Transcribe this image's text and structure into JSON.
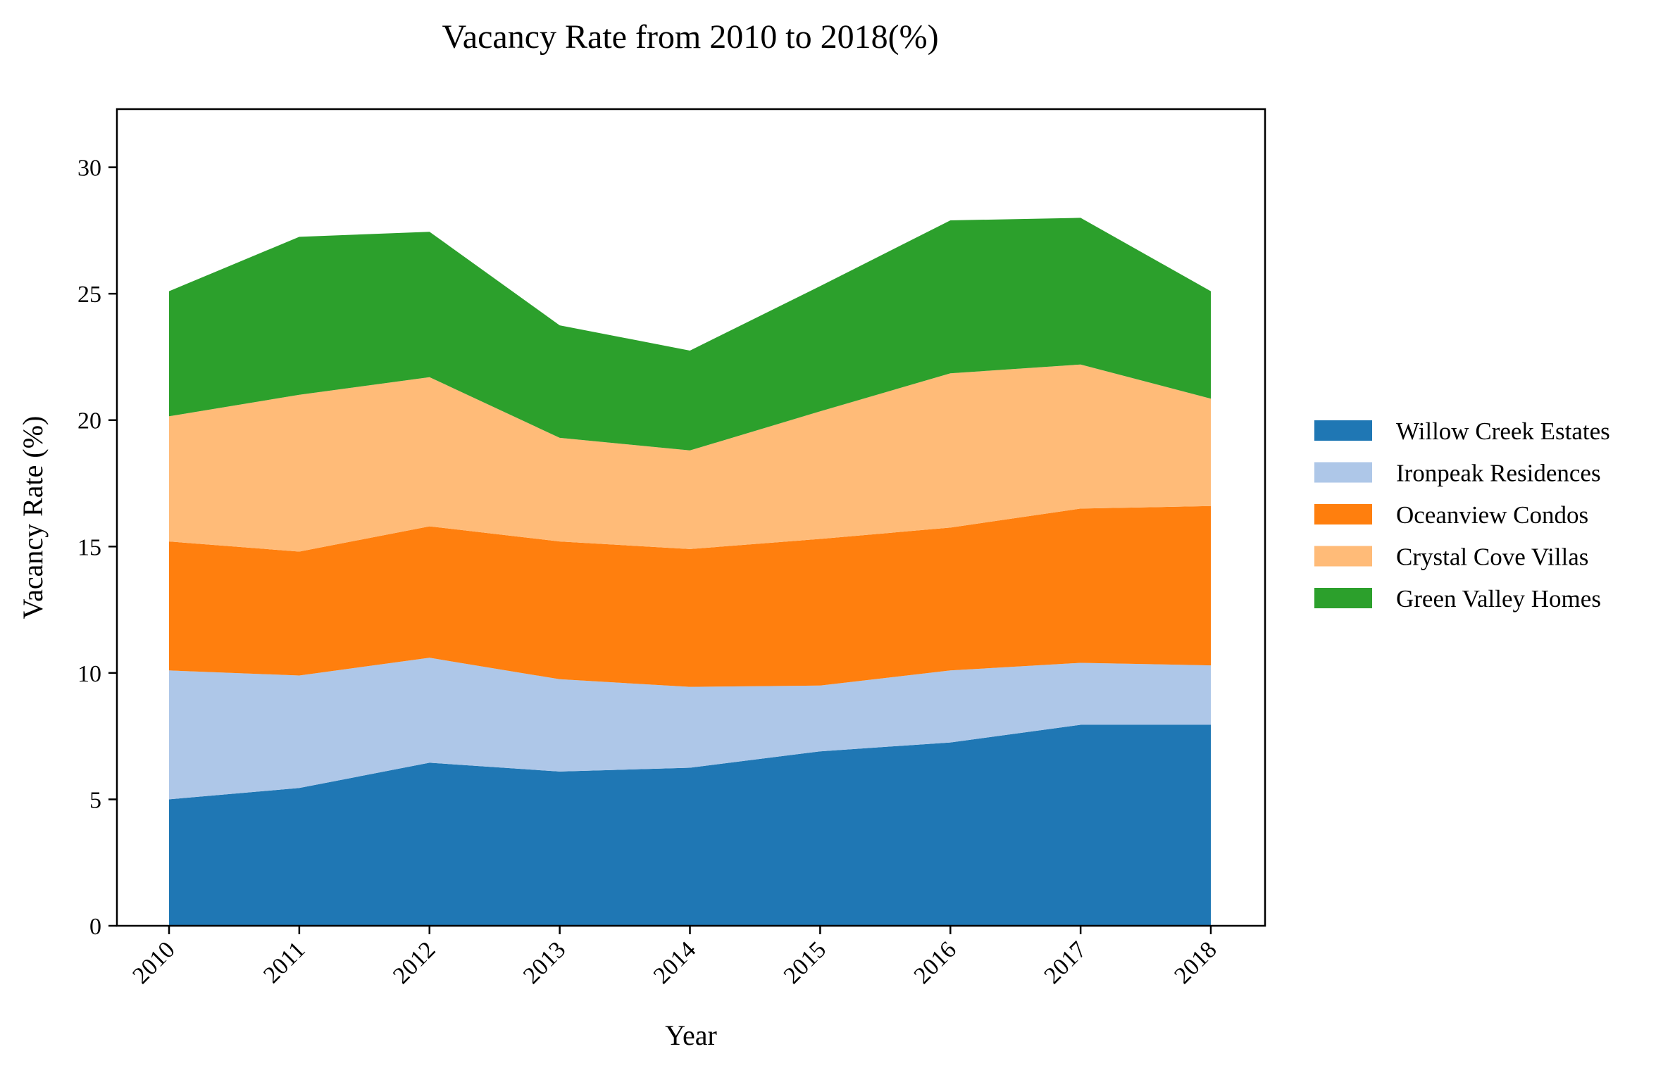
{
  "chart_data": {
    "type": "area",
    "stacked": true,
    "title": "Vacancy Rate from 2010 to 2018(%)",
    "xlabel": "Year",
    "ylabel": "Vacancy Rate (%)",
    "categories": [
      "2010",
      "2011",
      "2012",
      "2013",
      "2014",
      "2015",
      "2016",
      "2017",
      "2018"
    ],
    "ylim": [
      0,
      32.3
    ],
    "yticks": [
      0,
      5,
      10,
      15,
      20,
      25,
      30
    ],
    "grid": false,
    "legend_position": "right",
    "series": [
      {
        "name": "Willow Creek Estates",
        "color": "#1f77b4",
        "values": [
          5.0,
          5.45,
          6.45,
          6.1,
          6.25,
          6.9,
          7.25,
          7.95,
          7.95
        ]
      },
      {
        "name": "Ironpeak Residences",
        "color": "#aec7e8",
        "values": [
          5.1,
          4.45,
          4.15,
          3.65,
          3.2,
          2.6,
          2.85,
          2.45,
          2.35
        ]
      },
      {
        "name": "Oceanview Condos",
        "color": "#ff7f0e",
        "values": [
          5.1,
          4.9,
          5.2,
          5.45,
          5.45,
          5.8,
          5.65,
          6.1,
          6.3
        ]
      },
      {
        "name": "Crystal Cove Villas",
        "color": "#ffbb78",
        "values": [
          4.95,
          6.2,
          5.9,
          4.1,
          3.9,
          5.05,
          6.1,
          5.7,
          4.25
        ]
      },
      {
        "name": "Green Valley Homes",
        "color": "#2ca02c",
        "values": [
          4.95,
          6.25,
          5.75,
          4.45,
          3.95,
          4.95,
          6.05,
          5.8,
          4.25
        ]
      }
    ]
  }
}
